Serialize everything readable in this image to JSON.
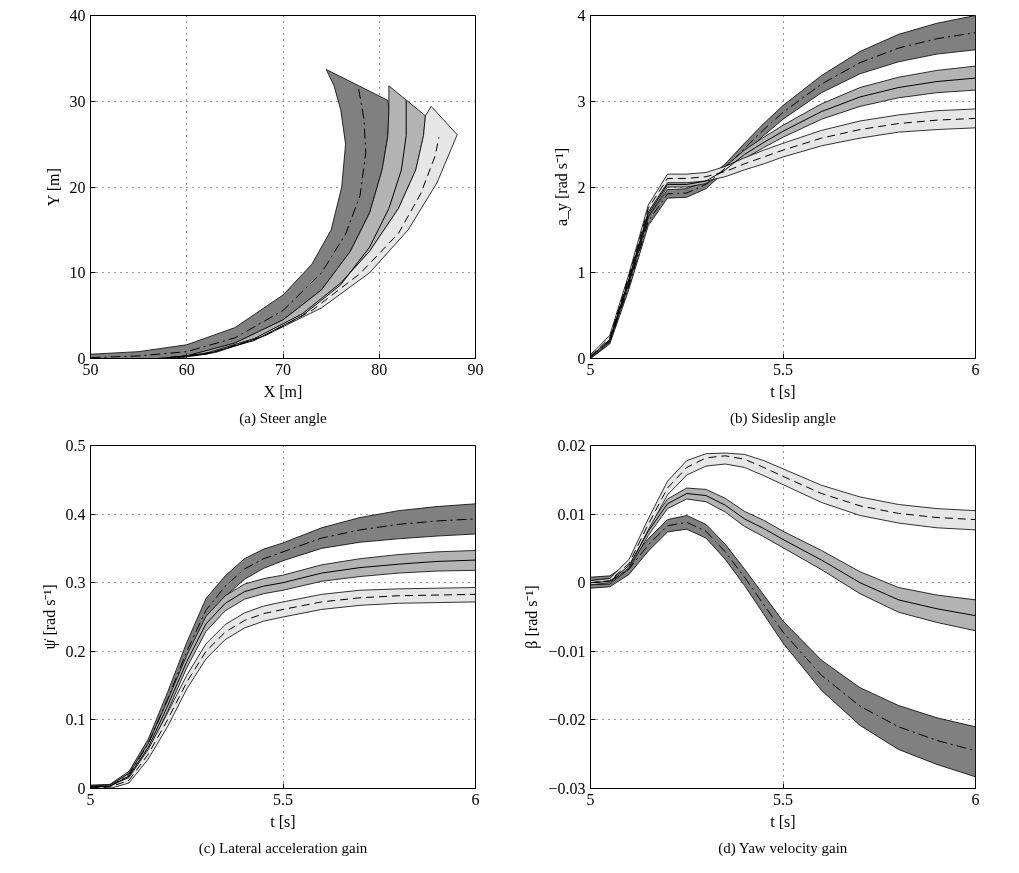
{
  "chart_data": [
    {
      "type": "area",
      "title": "(a) Steer angle",
      "xlabel": "X [m]",
      "ylabel": "Y [m]",
      "xlim": [
        50,
        90
      ],
      "ylim": [
        0,
        40
      ],
      "xticks": [
        50,
        60,
        70,
        80,
        90
      ],
      "yticks": [
        0,
        10,
        20,
        30,
        40
      ],
      "grid": true,
      "series": [
        {
          "type": "area",
          "color": "#808080",
          "x": [
            50,
            55,
            60,
            65,
            70,
            73,
            75,
            76.1,
            76.5,
            76,
            75.3,
            74.5,
            80.9,
            81,
            80.9,
            80.3,
            79,
            77,
            74,
            70,
            65,
            60,
            57,
            50
          ],
          "values": [
            0.5,
            0.8,
            1.6,
            3.6,
            7.4,
            11,
            15,
            20,
            25,
            29,
            31.8,
            33.7,
            30.1,
            29,
            26,
            22,
            17,
            12.5,
            8,
            4.5,
            1.8,
            0.3,
            0,
            0
          ]
        },
        {
          "type": "area",
          "color": "#b3b3b3",
          "x": [
            57,
            60,
            65,
            70,
            74,
            77,
            79,
            80.3,
            80.9,
            81,
            81,
            84.8,
            84.6,
            83.8,
            82,
            79,
            76,
            72,
            67,
            62,
            58
          ],
          "values": [
            0,
            0.3,
            1.8,
            4.5,
            8,
            12.5,
            17,
            22,
            26,
            29,
            31.8,
            28.3,
            26,
            22,
            17.5,
            12.5,
            8.8,
            5.2,
            2.3,
            0.6,
            0
          ]
        },
        {
          "type": "area",
          "color": "#e6e6e6",
          "x": [
            58,
            62,
            67,
            72,
            76,
            79,
            82,
            83.8,
            84.6,
            84.8,
            85.4,
            88.1,
            86,
            83,
            79,
            74,
            68,
            63,
            59
          ],
          "values": [
            0,
            0.6,
            2.3,
            5.2,
            8.8,
            12.5,
            17.5,
            22,
            26,
            28.3,
            29.4,
            26.1,
            20.5,
            15,
            10,
            5.9,
            2.6,
            0.7,
            0
          ]
        },
        {
          "type": "line",
          "line_style": "dashdot",
          "color": "#000000",
          "x": [
            50,
            55,
            60,
            65,
            70,
            74,
            76.5,
            78,
            78.6,
            78.4,
            77.8
          ],
          "values": [
            0.1,
            0.3,
            0.8,
            2.4,
            5.6,
            10,
            14.5,
            19,
            24,
            28,
            31.8
          ]
        },
        {
          "type": "line",
          "line_style": "solid",
          "color": "#000000",
          "x": [
            58,
            62,
            67,
            72,
            76,
            79,
            81,
            82.3,
            82.8,
            82.8
          ],
          "values": [
            0.1,
            0.5,
            2.1,
            5,
            8.6,
            13,
            17.5,
            22,
            26,
            30.1
          ]
        },
        {
          "type": "line",
          "line_style": "dashed",
          "color": "#000000",
          "x": [
            59,
            63,
            68,
            73,
            78,
            82,
            84.3,
            85.8,
            86.2
          ],
          "values": [
            0.1,
            0.8,
            2.6,
            5.6,
            9.9,
            14.6,
            19.2,
            23.6,
            25.8
          ]
        }
      ]
    },
    {
      "type": "line",
      "title": "(b) Sideslip angle",
      "xlabel": "t [s]",
      "ylabel": "a_y [rad s⁻¹]",
      "xlim": [
        5,
        6
      ],
      "ylim": [
        0,
        4
      ],
      "xticks": [
        5,
        5.5,
        6
      ],
      "yticks": [
        0,
        1,
        2,
        3,
        4
      ],
      "grid": true,
      "x": [
        5,
        5.05,
        5.1,
        5.15,
        5.2,
        5.25,
        5.3,
        5.35,
        5.4,
        5.45,
        5.5,
        5.6,
        5.7,
        5.8,
        5.9,
        6
      ],
      "series": [
        {
          "type": "area",
          "color": "#808080",
          "x": [
            5,
            5.05,
            5.1,
            5.15,
            5.2,
            5.25,
            5.3,
            5.35,
            5.4,
            5.45,
            5.5,
            5.6,
            5.7,
            5.8,
            5.9,
            6,
            6,
            5.9,
            5.8,
            5.7,
            5.6,
            5.5,
            5.45,
            5.4,
            5.35,
            5.3,
            5.25,
            5.2,
            5.15,
            5.1,
            5.05,
            5
          ],
          "values": [
            0,
            0.17,
            0.81,
            1.55,
            1.87,
            1.88,
            1.98,
            null,
            2.39,
            2.6,
            2.79,
            3.1,
            3.32,
            3.46,
            3.55,
            3.6,
            4,
            3.91,
            3.78,
            3.58,
            3.3,
            2.95,
            2.74,
            2.51,
            2.27,
            2.08,
            1.98,
            1.97,
            1.65,
            0.89,
            0.23,
            0.05
          ]
        },
        {
          "type": "area",
          "color": "#b3b3b3",
          "x": [
            5,
            5.05,
            5.1,
            5.15,
            5.2,
            5.25,
            5.3,
            5.35,
            5.4,
            5.45,
            5.5,
            5.6,
            5.7,
            5.8,
            5.9,
            6,
            6,
            5.9,
            5.8,
            5.7,
            5.6,
            5.5,
            5.45,
            5.4,
            5.35,
            5.3,
            5.25,
            5.2,
            5.15,
            5.1,
            5.05,
            5
          ],
          "values": [
            0,
            0.19,
            0.89,
            1.65,
            2,
            2,
            2.04,
            2.16,
            2.33,
            2.46,
            2.58,
            2.79,
            2.94,
            3.04,
            3.1,
            3.13,
            3.41,
            3.36,
            3.28,
            3.16,
            2.97,
            2.72,
            2.58,
            2.43,
            2.24,
            2.1,
            2.06,
            2.06,
            1.71,
            0.95,
            0.25,
            0.04
          ]
        },
        {
          "type": "area",
          "color": "#e6e6e6",
          "x": [
            5,
            5.05,
            5.1,
            5.15,
            5.2,
            5.25,
            5.3,
            5.35,
            5.4,
            5.45,
            5.5,
            5.6,
            5.7,
            5.8,
            5.9,
            6,
            6,
            5.9,
            5.8,
            5.7,
            5.6,
            5.5,
            5.45,
            5.4,
            5.35,
            5.3,
            5.25,
            5.2,
            5.15,
            5.1,
            5.05,
            5
          ],
          "values": [
            0,
            0.21,
            0.93,
            1.71,
            2.05,
            2.05,
            2.07,
            2.12,
            2.2,
            2.27,
            2.35,
            2.48,
            2.57,
            2.64,
            2.67,
            2.69,
            2.91,
            2.89,
            2.84,
            2.77,
            2.66,
            2.51,
            2.43,
            2.34,
            2.24,
            2.17,
            2.15,
            2.15,
            1.79,
            0.99,
            0.27,
            0.04
          ]
        },
        {
          "color": "#000000",
          "line_style": "dashdot",
          "values": [
            0.02,
            0.2,
            0.85,
            1.6,
            1.92,
            1.93,
            2.03,
            2.22,
            2.45,
            2.67,
            2.87,
            3.2,
            3.45,
            3.62,
            3.73,
            3.8
          ]
        },
        {
          "color": "#000000",
          "line_style": "solid",
          "values": [
            0.02,
            0.22,
            0.92,
            1.68,
            2.03,
            2.03,
            2.07,
            2.2,
            2.38,
            2.52,
            2.65,
            2.88,
            3.05,
            3.16,
            3.23,
            3.27
          ]
        },
        {
          "color": "#000000",
          "line_style": "dashed",
          "values": [
            0.02,
            0.24,
            0.96,
            1.75,
            2.1,
            2.1,
            2.12,
            2.18,
            2.27,
            2.35,
            2.43,
            2.57,
            2.67,
            2.74,
            2.78,
            2.8
          ]
        }
      ]
    },
    {
      "type": "line",
      "title": "(c) Lateral acceleration gain",
      "xlabel": "t [s]",
      "ylabel": "ψ̇ [rad s⁻¹]",
      "xlim": [
        5,
        6
      ],
      "ylim": [
        0,
        0.5
      ],
      "xticks": [
        5,
        5.5,
        6
      ],
      "yticks": [
        0,
        0.1,
        0.2,
        0.3,
        0.4,
        0.5
      ],
      "grid": true,
      "x": [
        5,
        5.05,
        5.1,
        5.15,
        5.2,
        5.25,
        5.3,
        5.35,
        5.4,
        5.45,
        5.5,
        5.6,
        5.7,
        5.8,
        5.9,
        6
      ],
      "series": [
        {
          "type": "area",
          "color": "#808080",
          "x": [
            5,
            5.05,
            5.1,
            5.15,
            5.2,
            5.25,
            5.3,
            5.35,
            5.4,
            5.45,
            5.5,
            5.6,
            5.7,
            5.8,
            5.9,
            6,
            6,
            5.9,
            5.8,
            5.7,
            5.6,
            5.5,
            5.45,
            5.4,
            5.35,
            5.3,
            5.25,
            5.2,
            5.15,
            5.1,
            5.05,
            5
          ],
          "values": [
            0,
            0.001,
            0.017,
            0.058,
            0.122,
            0.187,
            0.243,
            0.28,
            0.305,
            0.321,
            0.332,
            0.35,
            0.359,
            0.364,
            0.368,
            0.371,
            0.415,
            0.411,
            0.405,
            0.395,
            0.38,
            0.358,
            0.349,
            0.335,
            0.31,
            0.277,
            0.213,
            0.14,
            0.072,
            0.025,
            0.006,
            0.005
          ]
        },
        {
          "type": "area",
          "color": "#b3b3b3",
          "x": [
            5,
            5.05,
            5.1,
            5.15,
            5.2,
            5.25,
            5.3,
            5.35,
            5.4,
            5.45,
            5.5,
            5.6,
            5.7,
            5.8,
            5.9,
            6,
            6,
            5.9,
            5.8,
            5.7,
            5.6,
            5.5,
            5.45,
            5.4,
            5.35,
            5.3,
            5.25,
            5.2,
            5.15,
            5.1,
            5.05,
            5
          ],
          "values": [
            0,
            0.001,
            0.014,
            0.054,
            0.112,
            0.176,
            0.229,
            0.259,
            0.276,
            0.284,
            0.289,
            0.302,
            0.309,
            0.314,
            0.317,
            0.318,
            0.347,
            0.345,
            0.341,
            0.335,
            0.326,
            0.311,
            0.306,
            0.298,
            0.281,
            0.251,
            0.194,
            0.128,
            0.066,
            0.022,
            0.005,
            0.004
          ]
        },
        {
          "type": "area",
          "color": "#e6e6e6",
          "x": [
            5,
            5.05,
            5.1,
            5.15,
            5.2,
            5.25,
            5.3,
            5.35,
            5.4,
            5.45,
            5.5,
            5.6,
            5.7,
            5.8,
            5.9,
            6,
            6,
            5.9,
            5.8,
            5.7,
            5.6,
            5.5,
            5.45,
            5.4,
            5.35,
            5.3,
            5.25,
            5.2,
            5.15,
            5.1,
            5.05,
            5
          ],
          "values": [
            0,
            0,
            0.008,
            0.043,
            0.09,
            0.145,
            0.189,
            0.217,
            0.234,
            0.244,
            0.25,
            0.261,
            0.267,
            0.27,
            0.271,
            0.272,
            0.293,
            0.292,
            0.291,
            0.289,
            0.283,
            0.272,
            0.266,
            0.256,
            0.239,
            0.211,
            0.165,
            0.11,
            0.057,
            0.016,
            0.004,
            0.003
          ]
        },
        {
          "color": "#000000",
          "line_style": "dashdot",
          "values": [
            0.002,
            0.003,
            0.02,
            0.065,
            0.13,
            0.2,
            0.26,
            0.295,
            0.32,
            0.335,
            0.345,
            0.365,
            0.377,
            0.385,
            0.39,
            0.393
          ]
        },
        {
          "color": "#000000",
          "line_style": "solid",
          "values": [
            0.002,
            0.003,
            0.018,
            0.06,
            0.12,
            0.185,
            0.24,
            0.27,
            0.287,
            0.295,
            0.3,
            0.314,
            0.322,
            0.327,
            0.331,
            0.333
          ]
        },
        {
          "color": "#000000",
          "line_style": "dashed",
          "values": [
            0.001,
            0.002,
            0.012,
            0.05,
            0.1,
            0.155,
            0.2,
            0.228,
            0.245,
            0.255,
            0.261,
            0.272,
            0.278,
            0.281,
            0.282,
            0.283
          ]
        }
      ]
    },
    {
      "type": "line",
      "title": "(d) Yaw velocity gain",
      "xlabel": "t [s]",
      "ylabel": "β [rad s⁻¹]",
      "xlim": [
        5,
        6
      ],
      "ylim": [
        -0.03,
        0.02
      ],
      "xticks": [
        5,
        5.5,
        6
      ],
      "yticks": [
        {
          "value": -0.03,
          "label": "−0.03"
        },
        {
          "value": -0.02,
          "label": "−0.02"
        },
        {
          "value": -0.01,
          "label": "−0.01"
        },
        0,
        0.01,
        0.02
      ],
      "grid": true,
      "x": [
        5,
        5.05,
        5.1,
        5.15,
        5.2,
        5.25,
        5.3,
        5.35,
        5.4,
        5.45,
        5.5,
        5.6,
        5.7,
        5.8,
        5.9,
        6
      ],
      "series": [
        {
          "type": "area",
          "color": "#808080",
          "x": [
            5,
            5.05,
            5.1,
            5.15,
            5.2,
            5.25,
            5.3,
            5.35,
            5.4,
            5.45,
            5.5,
            5.6,
            5.7,
            5.8,
            5.9,
            6,
            6,
            5.9,
            5.8,
            5.7,
            5.6,
            5.5,
            5.45,
            5.4,
            5.35,
            5.3,
            5.25,
            5.2,
            5.15,
            5.1,
            5.05,
            5
          ],
          "values": [
            -0.0008,
            -0.0006,
            0.0012,
            0.0046,
            0.0074,
            0.0078,
            0.0065,
            0.0034,
            -0.0004,
            -0.0046,
            -0.0088,
            -0.0157,
            -0.0208,
            -0.0243,
            -0.0265,
            -0.0283,
            -0.021,
            -0.0197,
            -0.0179,
            -0.0153,
            -0.0113,
            -0.0056,
            -0.0018,
            0.002,
            0.0056,
            0.0085,
            0.0098,
            0.0092,
            0.0064,
            0.0028,
            0.001,
            0.0008
          ]
        },
        {
          "type": "area",
          "color": "#b3b3b3",
          "x": [
            5,
            5.05,
            5.1,
            5.15,
            5.2,
            5.25,
            5.3,
            5.35,
            5.4,
            5.45,
            5.5,
            5.6,
            5.7,
            5.8,
            5.9,
            6,
            6,
            5.9,
            5.8,
            5.7,
            5.6,
            5.5,
            5.45,
            5.4,
            5.35,
            5.3,
            5.25,
            5.2,
            5.15,
            5.1,
            5.05,
            5
          ],
          "values": [
            -0.0003,
            -0.0002,
            0.002,
            0.0069,
            0.0108,
            0.0122,
            0.0118,
            0.0103,
            0.0082,
            0.0067,
            0.0051,
            0.0019,
            -0.0016,
            -0.0043,
            -0.0058,
            -0.007,
            -0.0025,
            -0.0018,
            -0.0007,
            0.0016,
            0.0047,
            0.0075,
            0.0091,
            0.0104,
            0.0123,
            0.0136,
            0.0138,
            0.0122,
            0.0081,
            0.003,
            0.0006,
            0.0003
          ]
        },
        {
          "type": "area",
          "color": "#e6e6e6",
          "x": [
            5,
            5.05,
            5.1,
            5.15,
            5.2,
            5.25,
            5.3,
            5.35,
            5.4,
            5.45,
            5.5,
            5.6,
            5.7,
            5.8,
            5.9,
            6,
            6,
            5.9,
            5.8,
            5.7,
            5.6,
            5.5,
            5.45,
            5.4,
            5.35,
            5.3,
            5.25,
            5.2,
            5.15,
            5.1,
            5.05,
            5
          ],
          "values": [
            -0.0003,
            0,
            0.0022,
            0.0077,
            0.0128,
            0.0157,
            0.017,
            0.0173,
            0.0168,
            0.0156,
            0.0143,
            0.0117,
            0.0098,
            0.0087,
            0.008,
            0.0077,
            0.0105,
            0.0108,
            0.0114,
            0.0125,
            0.0142,
            0.0166,
            0.0178,
            0.0187,
            0.0189,
            0.0188,
            0.0178,
            0.0148,
            0.0093,
            0.0034,
            0.0006,
            0.0003
          ]
        },
        {
          "color": "#000000",
          "line_style": "dashdot",
          "values": [
            0,
            0.0002,
            0.002,
            0.0055,
            0.0083,
            0.0088,
            0.0075,
            0.0045,
            0.0008,
            -0.0032,
            -0.0072,
            -0.0135,
            -0.018,
            -0.021,
            -0.023,
            -0.0245
          ]
        },
        {
          "color": "#000000",
          "line_style": "solid",
          "values": [
            0,
            0.0002,
            0.0025,
            0.0075,
            0.0115,
            0.013,
            0.0127,
            0.0113,
            0.0093,
            0.0079,
            0.0063,
            0.0033,
            0,
            -0.0025,
            -0.0038,
            -0.0048
          ]
        },
        {
          "color": "#000000",
          "line_style": "dashed",
          "values": [
            0,
            0.0003,
            0.0028,
            0.0085,
            0.0138,
            0.0168,
            0.0182,
            0.0185,
            0.018,
            0.0168,
            0.0155,
            0.013,
            0.0112,
            0.0101,
            0.0095,
            0.0092
          ]
        }
      ]
    }
  ]
}
